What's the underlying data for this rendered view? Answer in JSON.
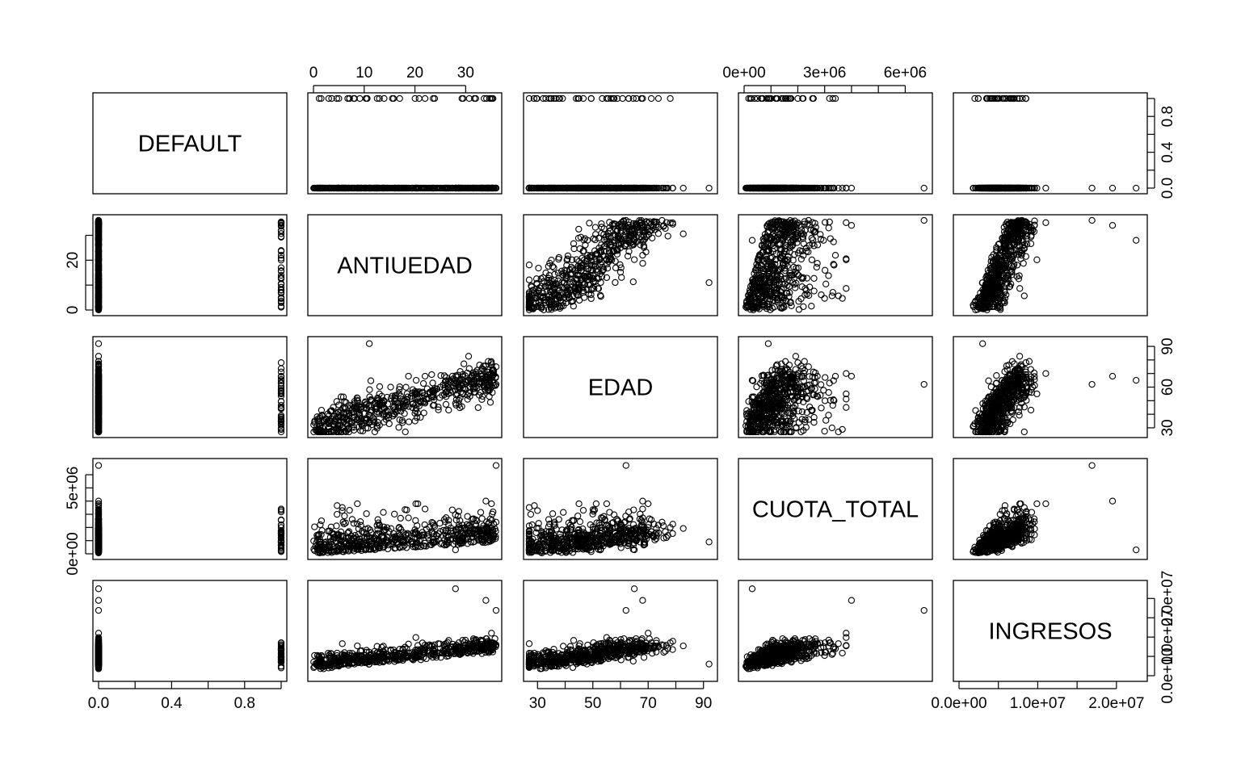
{
  "chart_data": {
    "type": "scatter",
    "subtype": "scatterplot-matrix",
    "variables": [
      "DEFAULT",
      "ANTIUEDAD",
      "EDAD",
      "CUOTA_TOTAL",
      "INGRESOS"
    ],
    "point_symbol": "open-circle",
    "ranges": {
      "DEFAULT": [
        0,
        1
      ],
      "ANTIUEDAD": [
        0,
        36
      ],
      "EDAD": [
        27,
        93
      ],
      "CUOTA_TOTAL": [
        0,
        6800000
      ],
      "INGRESOS": [
        0,
        23200000
      ]
    },
    "axes": [
      {
        "variable": "ANTIUEDAD",
        "side": "top",
        "ticks": [
          0,
          10,
          20,
          30
        ],
        "labels": [
          "0",
          "10",
          "20",
          "30"
        ]
      },
      {
        "variable": "CUOTA_TOTAL",
        "side": "top",
        "ticks": [
          0,
          1000000,
          2000000,
          3000000,
          4000000,
          5000000,
          6000000
        ],
        "labels": [
          "0e+00",
          "",
          "",
          "3e+06",
          "",
          "",
          "6e+06"
        ]
      },
      {
        "variable": "DEFAULT",
        "side": "right",
        "ticks": [
          0,
          0.2,
          0.4,
          0.6,
          0.8,
          1.0
        ],
        "labels": [
          "0.0",
          "",
          "0.4",
          "",
          "0.8",
          ""
        ]
      },
      {
        "variable": "EDAD",
        "side": "right",
        "ticks": [
          30,
          40,
          50,
          60,
          70,
          80,
          90
        ],
        "labels": [
          "30",
          "",
          "",
          "60",
          "",
          "",
          "90"
        ]
      },
      {
        "variable": "INGRESOS",
        "side": "right",
        "ticks": [
          0,
          5000000,
          10000000,
          15000000,
          20000000
        ],
        "labels": [
          "0.0e+00",
          "",
          "1.0e+07",
          "",
          "2.0e+07"
        ]
      },
      {
        "variable": "ANTIUEDAD",
        "side": "left",
        "ticks": [
          0,
          10,
          20,
          30
        ],
        "labels": [
          "0",
          "",
          "20",
          ""
        ]
      },
      {
        "variable": "CUOTA_TOTAL",
        "side": "left",
        "ticks": [
          0,
          1000000,
          2000000,
          3000000,
          4000000,
          5000000,
          6000000
        ],
        "labels": [
          "0e+00",
          "",
          "",
          "",
          "",
          "5e+06",
          ""
        ]
      },
      {
        "variable": "DEFAULT",
        "side": "bottom",
        "ticks": [
          0,
          0.2,
          0.4,
          0.6,
          0.8,
          1.0
        ],
        "labels": [
          "0.0",
          "",
          "0.4",
          "",
          "0.8",
          ""
        ]
      },
      {
        "variable": "EDAD",
        "side": "bottom",
        "ticks": [
          30,
          40,
          50,
          60,
          70,
          80,
          90
        ],
        "labels": [
          "30",
          "",
          "50",
          "",
          "70",
          "",
          "90"
        ]
      },
      {
        "variable": "INGRESOS",
        "side": "bottom",
        "ticks": [
          0,
          5000000,
          10000000,
          15000000,
          20000000
        ],
        "labels": [
          "0.0e+00",
          "",
          "1.0e+07",
          "",
          "2.0e+07"
        ]
      }
    ],
    "sample_records": [
      {
        "DEFAULT": 0,
        "ANTIUEDAD": 2,
        "EDAD": 31,
        "CUOTA_TOTAL": 150000,
        "INGRESOS": 1800000
      },
      {
        "DEFAULT": 0,
        "ANTIUEDAD": 5,
        "EDAD": 35,
        "CUOTA_TOTAL": 350000,
        "INGRESOS": 2600000
      },
      {
        "DEFAULT": 0,
        "ANTIUEDAD": 8,
        "EDAD": 42,
        "CUOTA_TOTAL": 700000,
        "INGRESOS": 3400000
      },
      {
        "DEFAULT": 0,
        "ANTIUEDAD": 12,
        "EDAD": 48,
        "CUOTA_TOTAL": 1100000,
        "INGRESOS": 4200000
      },
      {
        "DEFAULT": 0,
        "ANTIUEDAD": 16,
        "EDAD": 52,
        "CUOTA_TOTAL": 1300000,
        "INGRESOS": 4800000
      },
      {
        "DEFAULT": 0,
        "ANTIUEDAD": 20,
        "EDAD": 55,
        "CUOTA_TOTAL": 1500000,
        "INGRESOS": 5300000
      },
      {
        "DEFAULT": 0,
        "ANTIUEDAD": 25,
        "EDAD": 60,
        "CUOTA_TOTAL": 1700000,
        "INGRESOS": 5900000
      },
      {
        "DEFAULT": 0,
        "ANTIUEDAD": 30,
        "EDAD": 64,
        "CUOTA_TOTAL": 1800000,
        "INGRESOS": 6400000
      },
      {
        "DEFAULT": 0,
        "ANTIUEDAD": 35,
        "EDAD": 70,
        "CUOTA_TOTAL": 2000000,
        "INGRESOS": 7000000
      },
      {
        "DEFAULT": 0,
        "ANTIUEDAD": 36,
        "EDAD": 75,
        "CUOTA_TOTAL": 2400000,
        "INGRESOS": 8000000
      },
      {
        "DEFAULT": 0,
        "ANTIUEDAD": 36,
        "EDAD": 62,
        "CUOTA_TOTAL": 6700000,
        "INGRESOS": 16900000
      },
      {
        "DEFAULT": 0,
        "ANTIUEDAD": 34,
        "EDAD": 68,
        "CUOTA_TOTAL": 4000000,
        "INGRESOS": 19500000
      },
      {
        "DEFAULT": 0,
        "ANTIUEDAD": 28,
        "EDAD": 65,
        "CUOTA_TOTAL": 300000,
        "INGRESOS": 22500000
      },
      {
        "DEFAULT": 0,
        "ANTIUEDAD": 11,
        "EDAD": 92,
        "CUOTA_TOTAL": 900000,
        "INGRESOS": 3000000
      },
      {
        "DEFAULT": 1,
        "ANTIUEDAD": 3,
        "EDAD": 33,
        "CUOTA_TOTAL": 500000,
        "INGRESOS": 2000000
      },
      {
        "DEFAULT": 1,
        "ANTIUEDAD": 8,
        "EDAD": 45,
        "CUOTA_TOTAL": 1200000,
        "INGRESOS": 3500000
      },
      {
        "DEFAULT": 1,
        "ANTIUEDAD": 13,
        "EDAD": 55,
        "CUOTA_TOTAL": 2200000,
        "INGRESOS": 5000000
      },
      {
        "DEFAULT": 1,
        "ANTIUEDAD": 22,
        "EDAD": 68,
        "CUOTA_TOTAL": 3400000,
        "INGRESOS": 7000000
      },
      {
        "DEFAULT": 1,
        "ANTIUEDAD": 35,
        "EDAD": 78,
        "CUOTA_TOTAL": 2000000,
        "INGRESOS": 8500000
      }
    ]
  }
}
